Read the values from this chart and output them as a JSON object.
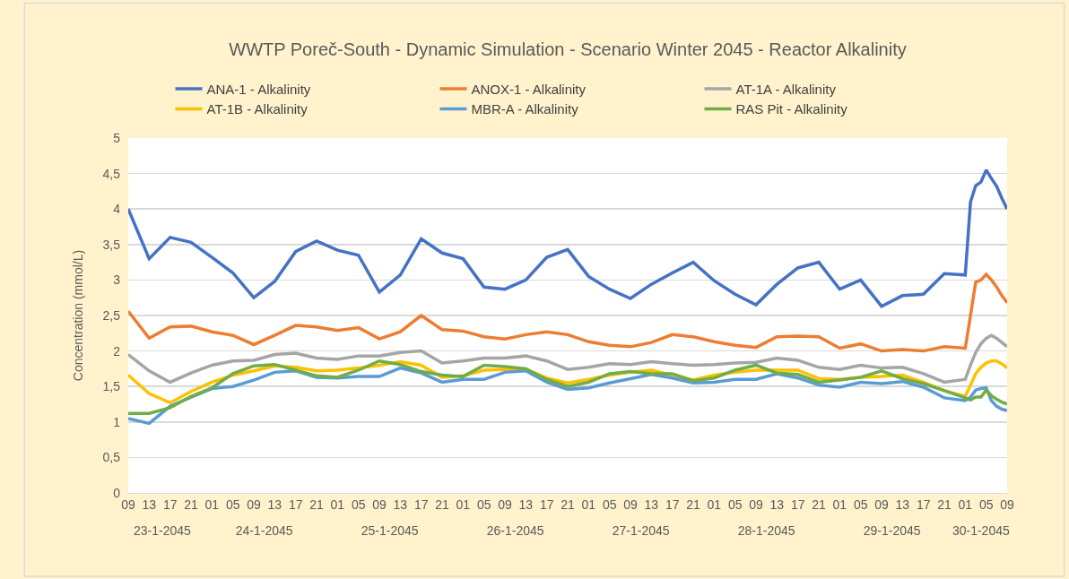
{
  "chart_data": {
    "type": "line",
    "title": "WWTP Poreč-South - Dynamic Simulation - Scenario Winter 2045 - Reactor Alkalinity",
    "ylabel": "Concentration (mmol/L)",
    "x": [
      "2045-01-23T09:00",
      "2045-01-23T13:00",
      "2045-01-23T17:00",
      "2045-01-23T21:00",
      "2045-01-24T01:00",
      "2045-01-24T05:00",
      "2045-01-24T09:00",
      "2045-01-24T13:00",
      "2045-01-24T17:00",
      "2045-01-24T21:00",
      "2045-01-25T01:00",
      "2045-01-25T05:00",
      "2045-01-25T09:00",
      "2045-01-25T13:00",
      "2045-01-25T17:00",
      "2045-01-25T21:00",
      "2045-01-26T01:00",
      "2045-01-26T05:00",
      "2045-01-26T09:00",
      "2045-01-26T13:00",
      "2045-01-26T17:00",
      "2045-01-26T21:00",
      "2045-01-27T01:00",
      "2045-01-27T05:00",
      "2045-01-27T09:00",
      "2045-01-27T13:00",
      "2045-01-27T17:00",
      "2045-01-27T21:00",
      "2045-01-28T01:00",
      "2045-01-28T05:00",
      "2045-01-28T09:00",
      "2045-01-28T13:00",
      "2045-01-28T17:00",
      "2045-01-28T21:00",
      "2045-01-29T01:00",
      "2045-01-29T05:00",
      "2045-01-29T09:00",
      "2045-01-29T13:00",
      "2045-01-29T17:00",
      "2045-01-29T21:00",
      "2045-01-30T01:00",
      "2045-01-30T02:00",
      "2045-01-30T03:00",
      "2045-01-30T04:00",
      "2045-01-30T05:00",
      "2045-01-30T06:00",
      "2045-01-30T07:00",
      "2045-01-30T08:00",
      "2045-01-30T09:00"
    ],
    "series": [
      {
        "name": "ANA-1 - Alkalinity",
        "color": "#4472c4",
        "values": [
          4.0,
          3.3,
          3.6,
          3.53,
          3.32,
          3.1,
          2.75,
          2.98,
          3.4,
          3.55,
          3.42,
          3.35,
          2.83,
          3.07,
          3.58,
          3.38,
          3.3,
          2.9,
          2.87,
          3.0,
          3.32,
          3.43,
          3.05,
          2.87,
          2.74,
          2.94,
          3.1,
          3.25,
          2.99,
          2.8,
          2.65,
          2.94,
          3.17,
          3.25,
          2.87,
          3.0,
          2.63,
          2.78,
          2.8,
          3.09,
          3.07,
          4.1,
          4.33,
          4.38,
          4.55,
          4.43,
          4.32,
          4.15,
          4.0
        ]
      },
      {
        "name": "ANOX-1 - Alkalinity",
        "color": "#ed7d31",
        "values": [
          2.56,
          2.18,
          2.34,
          2.35,
          2.27,
          2.22,
          2.09,
          2.22,
          2.36,
          2.34,
          2.29,
          2.33,
          2.17,
          2.27,
          2.5,
          2.3,
          2.28,
          2.2,
          2.17,
          2.23,
          2.27,
          2.23,
          2.13,
          2.08,
          2.06,
          2.12,
          2.23,
          2.2,
          2.13,
          2.08,
          2.05,
          2.2,
          2.21,
          2.2,
          2.04,
          2.1,
          2.0,
          2.02,
          2.0,
          2.06,
          2.04,
          2.5,
          2.97,
          3.0,
          3.08,
          3.0,
          2.9,
          2.78,
          2.68
        ]
      },
      {
        "name": "AT-1A - Alkalinity",
        "color": "#a5a5a5",
        "values": [
          1.95,
          1.72,
          1.56,
          1.69,
          1.8,
          1.86,
          1.87,
          1.95,
          1.97,
          1.9,
          1.88,
          1.93,
          1.93,
          1.98,
          2.0,
          1.83,
          1.86,
          1.9,
          1.9,
          1.93,
          1.86,
          1.74,
          1.77,
          1.82,
          1.81,
          1.85,
          1.82,
          1.8,
          1.81,
          1.83,
          1.84,
          1.9,
          1.87,
          1.77,
          1.74,
          1.8,
          1.76,
          1.77,
          1.68,
          1.56,
          1.6,
          1.8,
          1.98,
          2.1,
          2.18,
          2.22,
          2.18,
          2.12,
          2.06
        ]
      },
      {
        "name": "AT-1B - Alkalinity",
        "color": "#ffc000",
        "values": [
          1.66,
          1.4,
          1.27,
          1.43,
          1.56,
          1.66,
          1.72,
          1.79,
          1.77,
          1.72,
          1.73,
          1.76,
          1.8,
          1.85,
          1.8,
          1.63,
          1.65,
          1.73,
          1.74,
          1.74,
          1.62,
          1.55,
          1.6,
          1.66,
          1.7,
          1.73,
          1.66,
          1.59,
          1.66,
          1.7,
          1.73,
          1.73,
          1.73,
          1.61,
          1.6,
          1.63,
          1.64,
          1.66,
          1.56,
          1.44,
          1.36,
          1.52,
          1.68,
          1.77,
          1.83,
          1.86,
          1.86,
          1.82,
          1.76
        ]
      },
      {
        "name": "MBR-A - Alkalinity",
        "color": "#5b9bd5",
        "values": [
          1.05,
          0.98,
          1.22,
          1.35,
          1.47,
          1.5,
          1.59,
          1.7,
          1.72,
          1.63,
          1.62,
          1.64,
          1.64,
          1.76,
          1.69,
          1.56,
          1.6,
          1.6,
          1.7,
          1.72,
          1.56,
          1.46,
          1.48,
          1.55,
          1.61,
          1.67,
          1.62,
          1.55,
          1.56,
          1.6,
          1.6,
          1.68,
          1.62,
          1.52,
          1.49,
          1.56,
          1.54,
          1.57,
          1.49,
          1.34,
          1.3,
          1.35,
          1.45,
          1.47,
          1.48,
          1.3,
          1.22,
          1.18,
          1.16
        ]
      },
      {
        "name": "RAS Pit - Alkalinity",
        "color": "#70ad47",
        "values": [
          1.12,
          1.12,
          1.2,
          1.36,
          1.48,
          1.68,
          1.79,
          1.81,
          1.73,
          1.65,
          1.63,
          1.73,
          1.86,
          1.81,
          1.71,
          1.66,
          1.64,
          1.8,
          1.78,
          1.75,
          1.6,
          1.5,
          1.56,
          1.68,
          1.71,
          1.68,
          1.68,
          1.58,
          1.62,
          1.73,
          1.8,
          1.69,
          1.67,
          1.56,
          1.59,
          1.63,
          1.72,
          1.61,
          1.54,
          1.44,
          1.34,
          1.31,
          1.35,
          1.35,
          1.45,
          1.37,
          1.32,
          1.28,
          1.25
        ]
      }
    ],
    "xlim": [
      "2045-01-23T09:00",
      "2045-01-30T09:00"
    ],
    "xticks": [
      {
        "value": "2045-01-23T09:00",
        "label": "09"
      },
      {
        "value": "2045-01-23T13:00",
        "label": "13"
      },
      {
        "value": "2045-01-23T17:00",
        "label": "17"
      },
      {
        "value": "2045-01-23T21:00",
        "label": "21"
      },
      {
        "value": "2045-01-24T01:00",
        "label": "01"
      },
      {
        "value": "2045-01-24T05:00",
        "label": "05"
      },
      {
        "value": "2045-01-24T09:00",
        "label": "09"
      },
      {
        "value": "2045-01-24T13:00",
        "label": "13"
      },
      {
        "value": "2045-01-24T17:00",
        "label": "17"
      },
      {
        "value": "2045-01-24T21:00",
        "label": "21"
      },
      {
        "value": "2045-01-25T01:00",
        "label": "01"
      },
      {
        "value": "2045-01-25T05:00",
        "label": "05"
      },
      {
        "value": "2045-01-25T09:00",
        "label": "09"
      },
      {
        "value": "2045-01-25T13:00",
        "label": "13"
      },
      {
        "value": "2045-01-25T17:00",
        "label": "17"
      },
      {
        "value": "2045-01-25T21:00",
        "label": "21"
      },
      {
        "value": "2045-01-26T01:00",
        "label": "01"
      },
      {
        "value": "2045-01-26T05:00",
        "label": "05"
      },
      {
        "value": "2045-01-26T09:00",
        "label": "09"
      },
      {
        "value": "2045-01-26T13:00",
        "label": "13"
      },
      {
        "value": "2045-01-26T17:00",
        "label": "17"
      },
      {
        "value": "2045-01-26T21:00",
        "label": "21"
      },
      {
        "value": "2045-01-27T01:00",
        "label": "01"
      },
      {
        "value": "2045-01-27T05:00",
        "label": "05"
      },
      {
        "value": "2045-01-27T09:00",
        "label": "09"
      },
      {
        "value": "2045-01-27T13:00",
        "label": "13"
      },
      {
        "value": "2045-01-27T17:00",
        "label": "17"
      },
      {
        "value": "2045-01-27T21:00",
        "label": "21"
      },
      {
        "value": "2045-01-28T01:00",
        "label": "01"
      },
      {
        "value": "2045-01-28T05:00",
        "label": "05"
      },
      {
        "value": "2045-01-28T09:00",
        "label": "09"
      },
      {
        "value": "2045-01-28T13:00",
        "label": "13"
      },
      {
        "value": "2045-01-28T17:00",
        "label": "17"
      },
      {
        "value": "2045-01-28T21:00",
        "label": "21"
      },
      {
        "value": "2045-01-29T01:00",
        "label": "01"
      },
      {
        "value": "2045-01-29T05:00",
        "label": "05"
      },
      {
        "value": "2045-01-29T09:00",
        "label": "09"
      },
      {
        "value": "2045-01-29T13:00",
        "label": "13"
      },
      {
        "value": "2045-01-29T17:00",
        "label": "17"
      },
      {
        "value": "2045-01-29T21:00",
        "label": "21"
      },
      {
        "value": "2045-01-30T01:00",
        "label": "01"
      },
      {
        "value": "2045-01-30T05:00",
        "label": "05"
      },
      {
        "value": "2045-01-30T09:00",
        "label": "09"
      }
    ],
    "ylim": [
      0,
      5
    ],
    "yticks": [
      0,
      {
        "value": 0.5,
        "label": "0,5"
      },
      1,
      {
        "value": 1.5,
        "label": "1,5"
      },
      2,
      {
        "value": 2.5,
        "label": "2,5"
      },
      3,
      {
        "value": 3.5,
        "label": "3,5"
      },
      4,
      {
        "value": 4.5,
        "label": "4,5"
      },
      5
    ],
    "x2lim": [
      "2045-01-23T09:00",
      "2045-01-30T09:00"
    ],
    "x2ticks": [
      {
        "value": "2045-01-23T15:30",
        "label": "23-1-2045"
      },
      {
        "value": "2045-01-24T11:00",
        "label": "24-1-2045"
      },
      {
        "value": "2045-01-25T11:00",
        "label": "25-1-2045"
      },
      {
        "value": "2045-01-26T11:00",
        "label": "26-1-2045"
      },
      {
        "value": "2045-01-27T11:00",
        "label": "27-1-2045"
      },
      {
        "value": "2045-01-28T11:00",
        "label": "28-1-2045"
      },
      {
        "value": "2045-01-29T11:00",
        "label": "29-1-2045"
      },
      {
        "value": "2045-01-30T04:00",
        "label": "30-1-2045"
      }
    ],
    "grid": "y",
    "legend": "top"
  }
}
